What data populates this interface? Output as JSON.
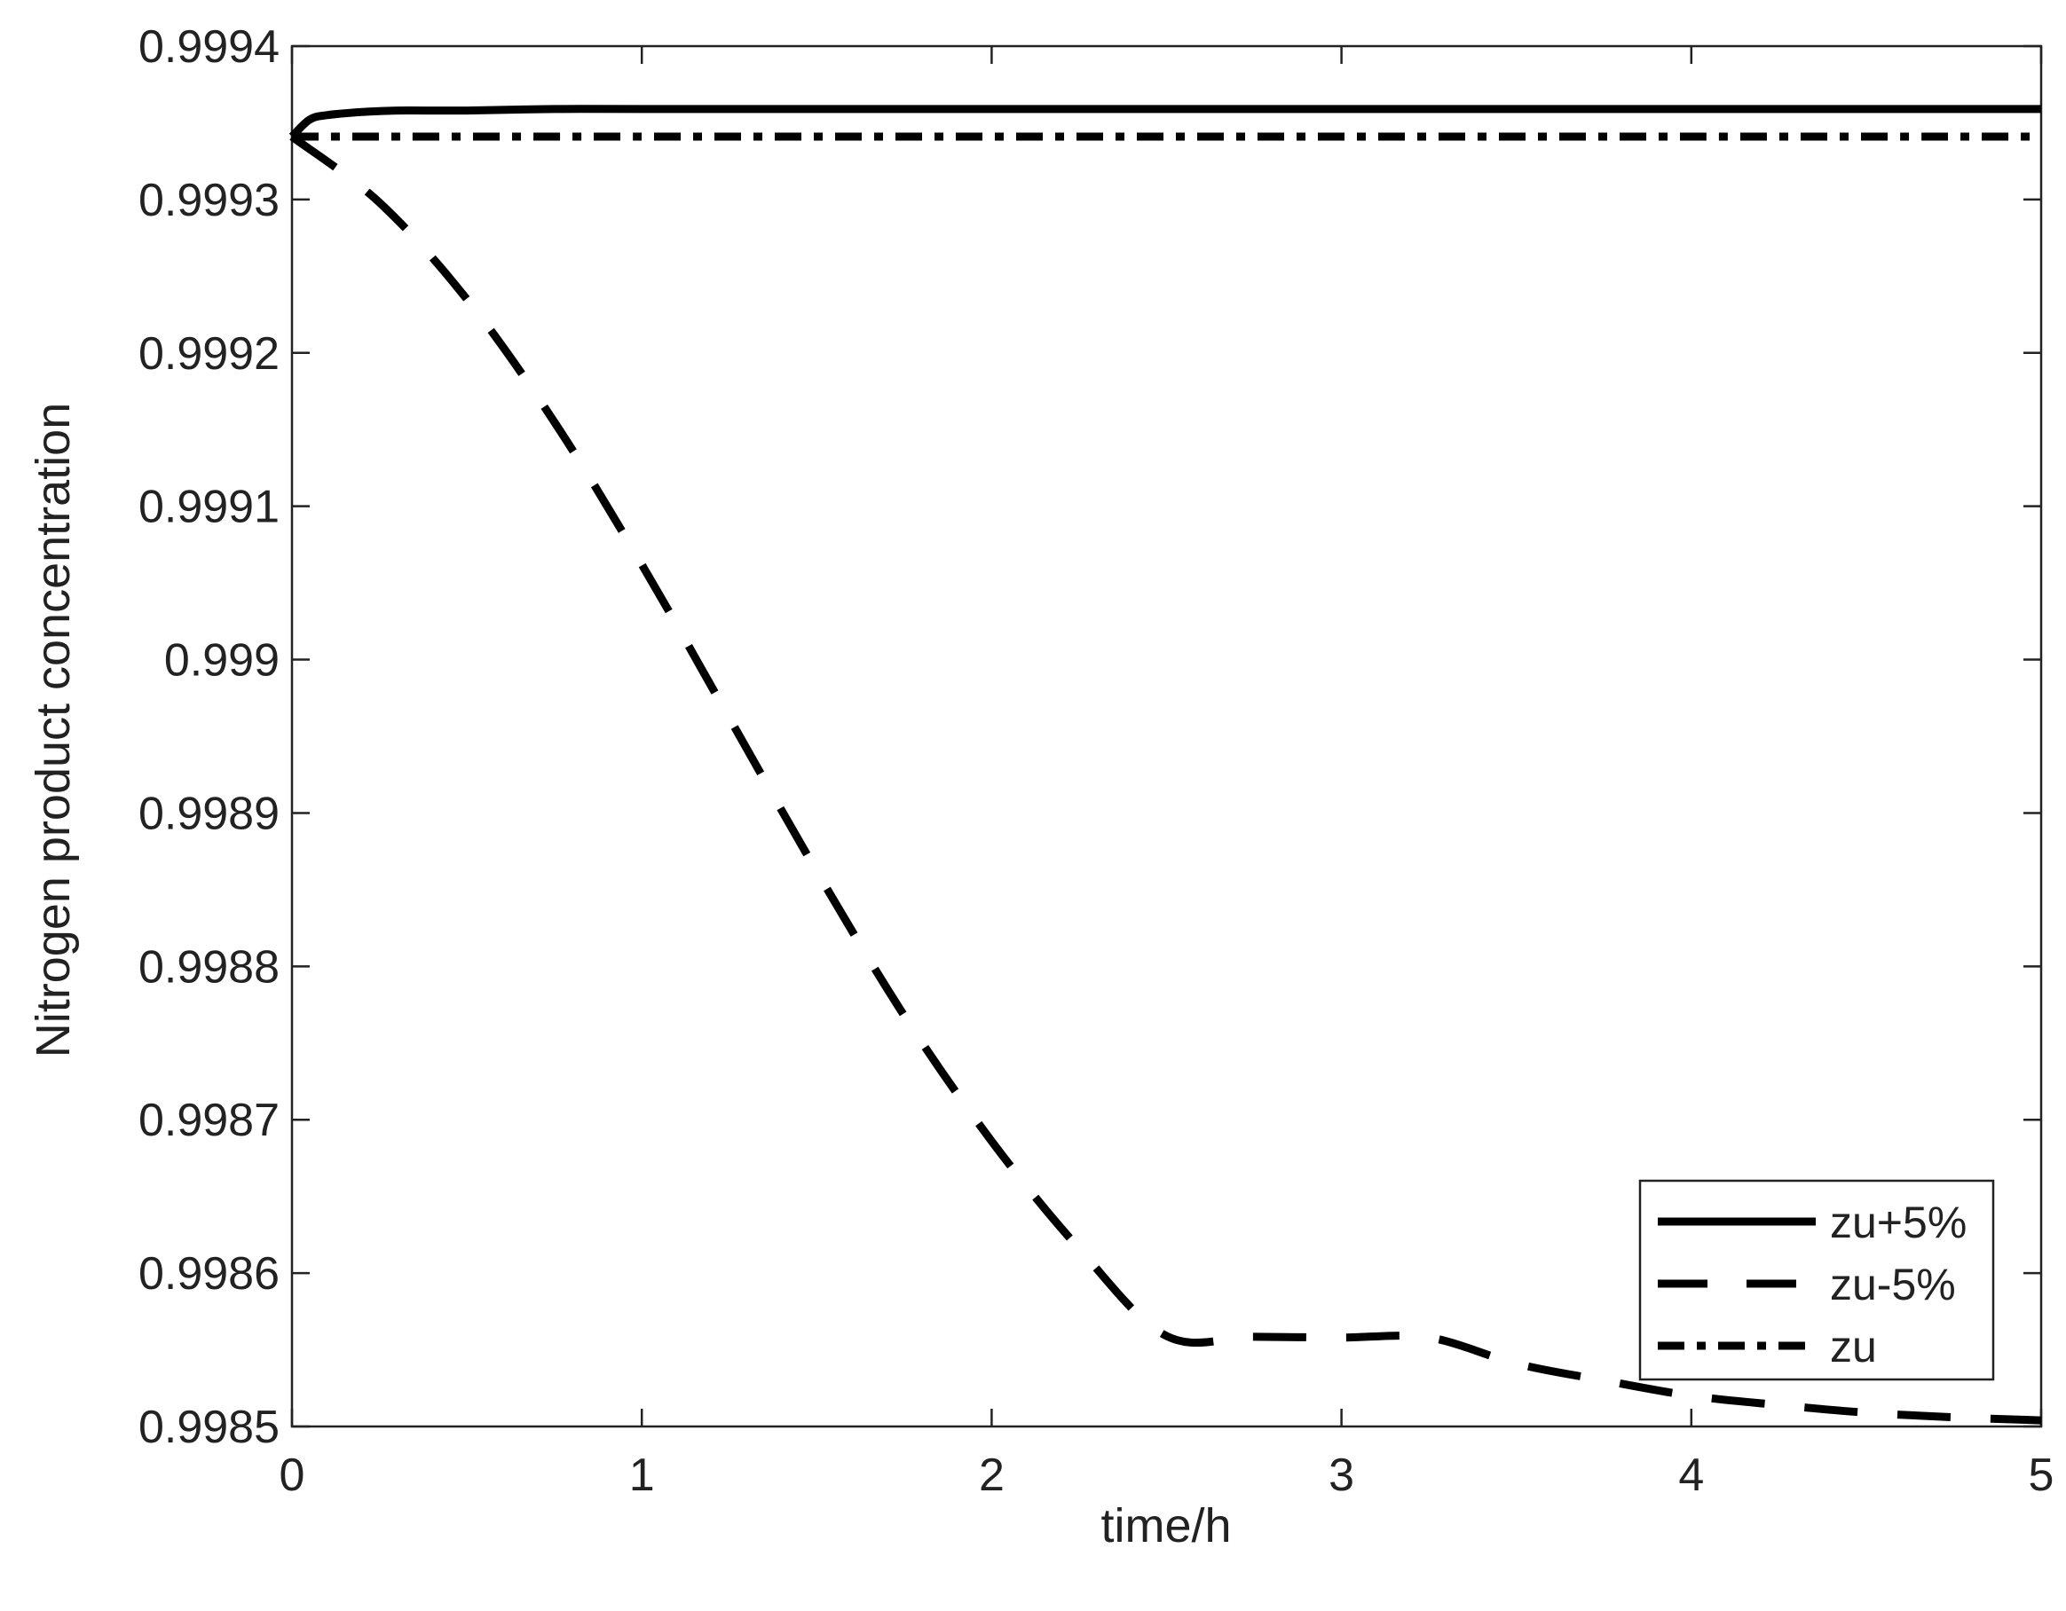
{
  "chart_data": {
    "type": "line",
    "title": "",
    "xlabel": "time/h",
    "ylabel": "Nitrogen product concentration",
    "xlim": [
      0,
      5
    ],
    "ylim": [
      0.9985,
      0.9994
    ],
    "x_ticks": [
      0,
      1,
      2,
      3,
      4,
      5
    ],
    "x_tick_labels": [
      "0",
      "1",
      "2",
      "3",
      "4",
      "5"
    ],
    "y_ticks": [
      0.9985,
      0.9986,
      0.9987,
      0.9988,
      0.9989,
      0.999,
      0.9991,
      0.9992,
      0.9993,
      0.9994
    ],
    "y_tick_labels": [
      "0.9985",
      "0.9986",
      "0.9987",
      "0.9988",
      "0.9989",
      "0.999",
      "0.9991",
      "0.9992",
      "0.9993",
      "0.9994"
    ],
    "grid": false,
    "legend_position": "bottom-right",
    "series": [
      {
        "name": "zu+5%",
        "line_style": "solid",
        "color": "#000000",
        "x": [
          0,
          0.05,
          0.1,
          0.2,
          0.3,
          0.5,
          0.75,
          1,
          1.5,
          2,
          2.5,
          3,
          3.5,
          4,
          4.5,
          5
        ],
        "y": [
          0.999341,
          0.999352,
          0.999355,
          0.999357,
          0.999358,
          0.999358,
          0.999359,
          0.999359,
          0.999359,
          0.999359,
          0.999359,
          0.999359,
          0.999359,
          0.999359,
          0.999359,
          0.999359
        ]
      },
      {
        "name": "zu-5%",
        "line_style": "dashed",
        "color": "#000000",
        "x": [
          0,
          0.25,
          0.5,
          0.75,
          1,
          1.25,
          1.5,
          1.75,
          2,
          2.25,
          2.5,
          2.75,
          3,
          3.25,
          3.5,
          3.75,
          4,
          4.25,
          4.5,
          4.75,
          5
        ],
        "y": [
          0.999341,
          0.999298,
          0.999235,
          0.999155,
          0.999062,
          0.998962,
          0.998862,
          0.998768,
          0.998686,
          0.998616,
          0.998559,
          0.998611,
          0.998582,
          0.998558,
          0.998541,
          0.99853,
          0.99852,
          0.998514,
          0.998509,
          0.998506,
          0.998504
        ]
      },
      {
        "name": "zu",
        "line_style": "dash-dot-heavy",
        "color": "#000000",
        "x": [
          0,
          1,
          2,
          3,
          4,
          5
        ],
        "y": [
          0.999341,
          0.999341,
          0.999341,
          0.999341,
          0.999341,
          0.999341
        ]
      }
    ]
  }
}
